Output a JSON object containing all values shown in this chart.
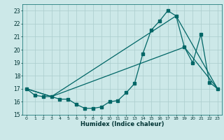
{
  "xlabel": "Humidex (Indice chaleur)",
  "bg_color": "#cce8e8",
  "grid_color": "#aacccc",
  "line_color": "#006666",
  "xlim": [
    -0.5,
    23.5
  ],
  "ylim": [
    15,
    23.5
  ],
  "yticks": [
    15,
    16,
    17,
    18,
    19,
    20,
    21,
    22,
    23
  ],
  "xticks": [
    0,
    1,
    2,
    3,
    4,
    5,
    6,
    7,
    8,
    9,
    10,
    11,
    12,
    13,
    14,
    15,
    16,
    17,
    18,
    19,
    20,
    21,
    22,
    23
  ],
  "line1_x": [
    0,
    1,
    2,
    3,
    4,
    5,
    6,
    7,
    8,
    9,
    10,
    11,
    12,
    13,
    14,
    15,
    16,
    17,
    18,
    19,
    20,
    21,
    22,
    23
  ],
  "line1_y": [
    17.0,
    16.5,
    16.4,
    16.4,
    16.2,
    16.2,
    15.8,
    15.5,
    15.5,
    15.6,
    16.0,
    16.1,
    16.7,
    17.4,
    19.7,
    21.5,
    22.2,
    23.0,
    22.6,
    20.2,
    19.0,
    21.2,
    17.5,
    17.0
  ],
  "line2_x": [
    0,
    3,
    18,
    23
  ],
  "line2_y": [
    17.0,
    16.4,
    22.6,
    17.0
  ],
  "line3_x": [
    0,
    3,
    19,
    23
  ],
  "line3_y": [
    17.0,
    16.4,
    20.2,
    17.0
  ]
}
